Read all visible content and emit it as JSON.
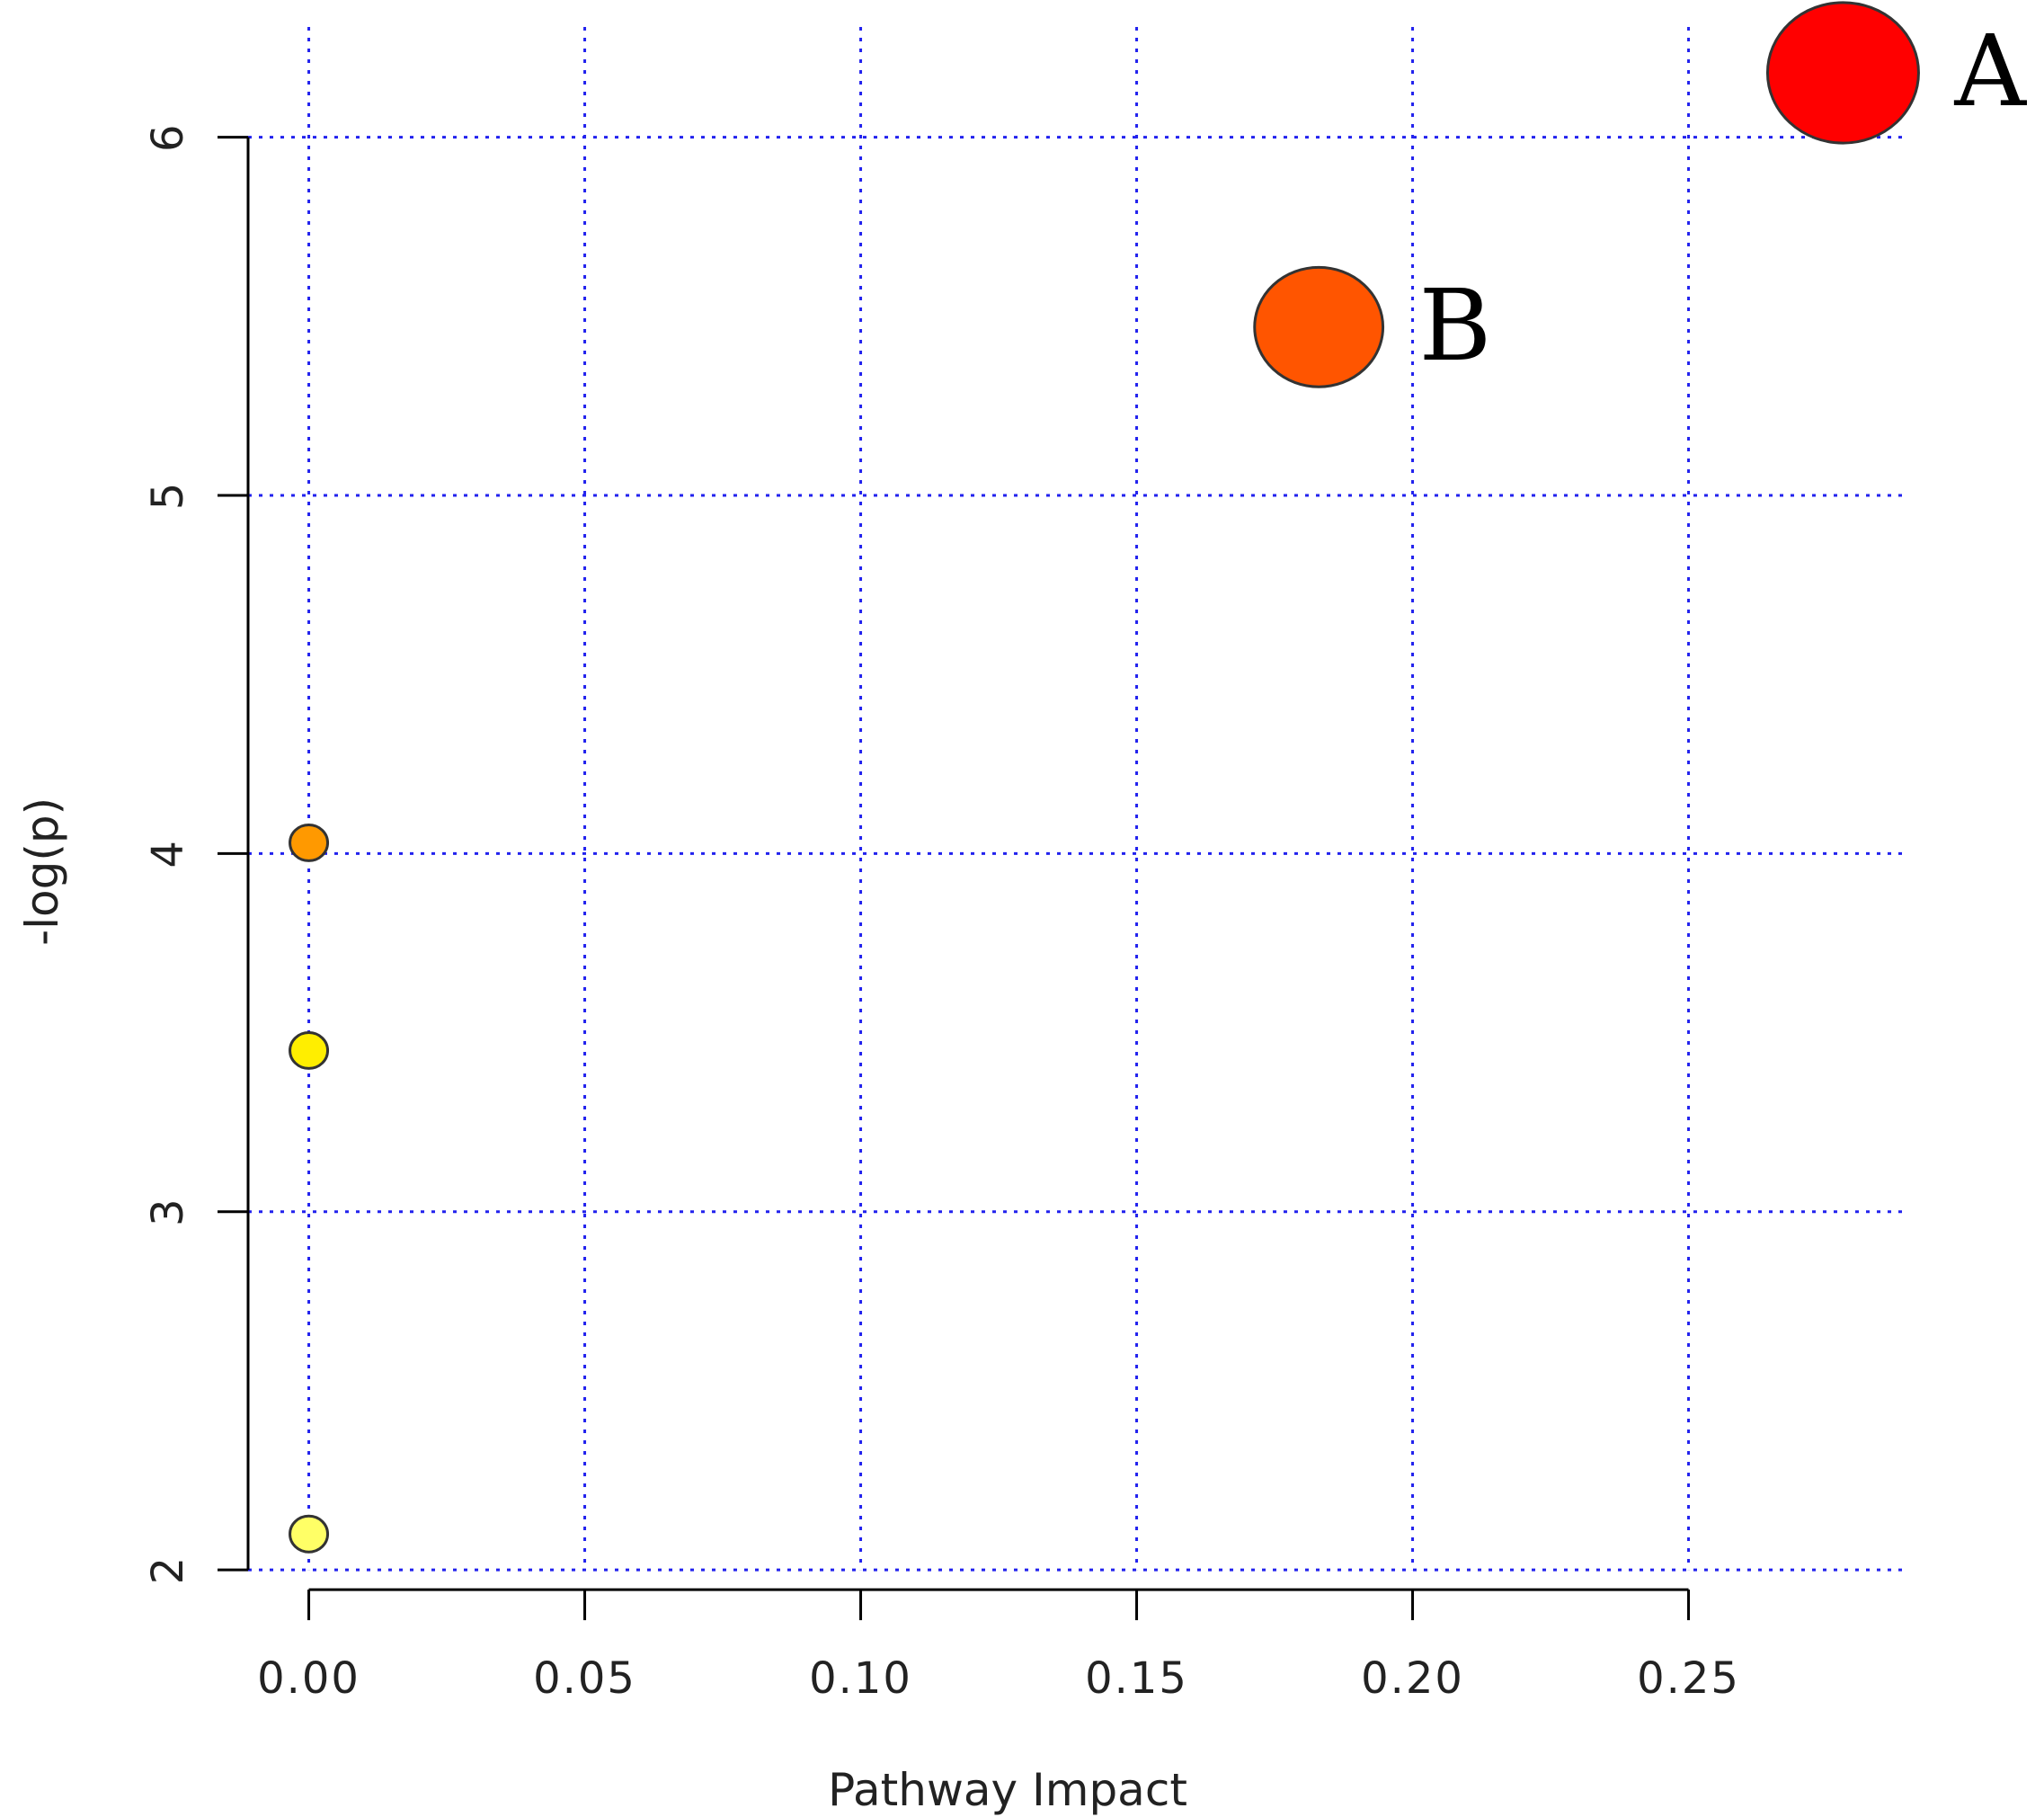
{
  "chart_data": {
    "type": "scatter",
    "xlabel": "Pathway Impact",
    "ylabel": "-log(p)",
    "xlim": [
      -0.011,
      0.289
    ],
    "ylim": [
      1.95,
      6.2
    ],
    "x_ticks": [
      0.0,
      0.05,
      0.1,
      0.15,
      0.2,
      0.25
    ],
    "x_tick_labels": [
      "0.00",
      "0.05",
      "0.10",
      "0.15",
      "0.20",
      "0.25"
    ],
    "y_ticks": [
      2,
      3,
      4,
      5,
      6
    ],
    "y_tick_labels": [
      "2",
      "3",
      "4",
      "5",
      "6"
    ],
    "x_grid": [
      0.0,
      0.05,
      0.1,
      0.15,
      0.2,
      0.25
    ],
    "y_grid": [
      2,
      3,
      4,
      5,
      6
    ],
    "grid": true,
    "grid_color": "#2222ee",
    "points": [
      {
        "label": "A",
        "x": 0.278,
        "y": 6.18,
        "size": 4.0,
        "color": "#ff0000"
      },
      {
        "label": "B",
        "x": 0.183,
        "y": 5.47,
        "size": 3.4,
        "color": "#ff5500"
      },
      {
        "label": "",
        "x": 0.0,
        "y": 4.03,
        "size": 1.0,
        "color": "#ff9900"
      },
      {
        "label": "",
        "x": 0.0,
        "y": 3.45,
        "size": 1.0,
        "color": "#ffee00"
      },
      {
        "label": "",
        "x": 0.0,
        "y": 2.1,
        "size": 1.0,
        "color": "#ffff66"
      }
    ]
  }
}
